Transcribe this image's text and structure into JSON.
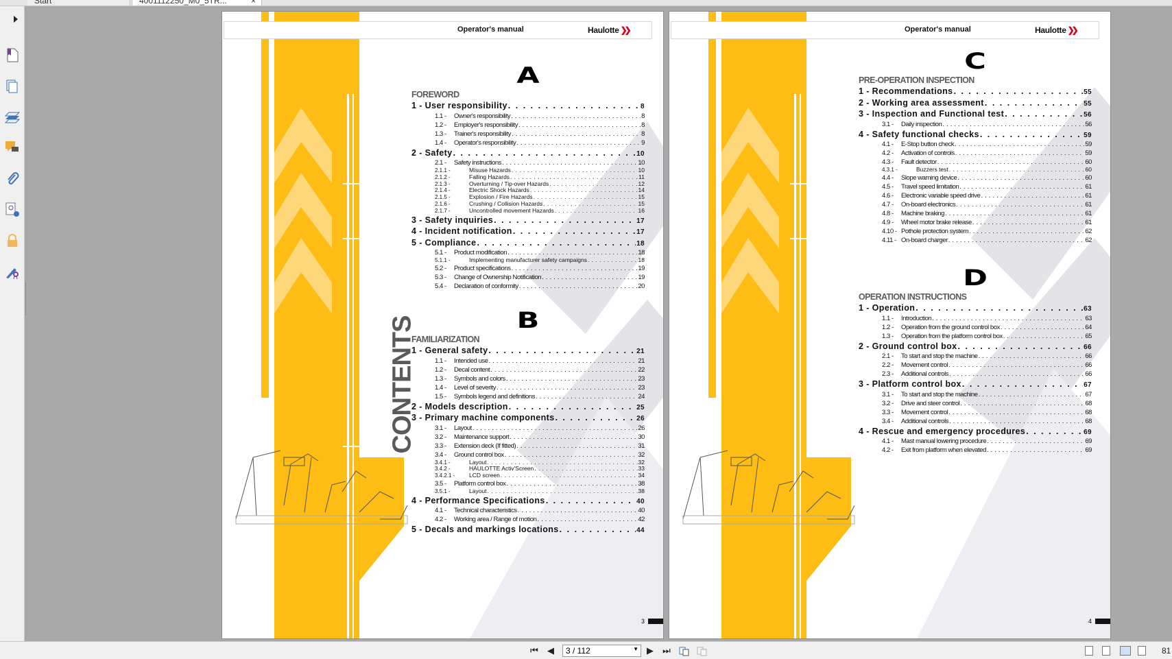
{
  "tabs": [
    {
      "label": "Start"
    },
    {
      "label": "4001112250_M0_5TR..."
    }
  ],
  "toolbar": {
    "page_field": "3 / 112",
    "zoom": "81",
    "close": "×"
  },
  "sidebar_icons": [
    "bookmark-icon",
    "pages-icon",
    "layers-icon",
    "comments-icon",
    "attachments-icon",
    "signature-icon",
    "lock-icon",
    "certify-icon"
  ],
  "colors": {
    "yellow": "#fdbd14",
    "light_yellow": "#fed77a",
    "gray_deco": "#e3e3e8",
    "section_gray": "#5b5b5b"
  },
  "pages": [
    {
      "header_title": "Operator's manual",
      "logo": "Haulotte",
      "side_title": "CONTENTS",
      "page_number": "3",
      "groups": [
        {
          "letter": "A",
          "heading": "FOREWORD",
          "entries": [
            {
              "level": 1,
              "title": "1 - User responsibility",
              "page": "8"
            },
            {
              "level": 2,
              "num": "1.1 -",
              "title": "Owner's responsibility",
              "page": "8"
            },
            {
              "level": 2,
              "num": "1.2 -",
              "title": "Employer's responsibility",
              "page": "8"
            },
            {
              "level": 2,
              "num": "1.3 -",
              "title": "Trainer's responsibility",
              "page": "8"
            },
            {
              "level": 2,
              "num": "1.4 -",
              "title": "Operator's responsibility",
              "page": "9"
            },
            {
              "level": 1,
              "title": "2 - Safety",
              "page": "10"
            },
            {
              "level": 2,
              "num": "2.1 -",
              "title": "Safety instructions",
              "page": "10"
            },
            {
              "level": 3,
              "num": "2.1.1 -",
              "title": "Misuse Hazards",
              "page": "10"
            },
            {
              "level": 3,
              "num": "2.1.2 -",
              "title": "Falling Hazards",
              "page": "11"
            },
            {
              "level": 3,
              "num": "2.1.3 -",
              "title": "Overturning / Tip-over Hazards",
              "page": "12"
            },
            {
              "level": 3,
              "num": "2.1.4 -",
              "title": "Electric Shock Hazards",
              "page": "14"
            },
            {
              "level": 3,
              "num": "2.1.5 -",
              "title": "Explosion / Fire Hazards",
              "page": "15"
            },
            {
              "level": 3,
              "num": "2.1.6 -",
              "title": "Crushing / Collision Hazards",
              "page": "15"
            },
            {
              "level": 3,
              "num": "2.1.7 -",
              "title": "Uncontrolled movement Hazards",
              "page": "16"
            },
            {
              "level": 1,
              "title": "3 - Safety inquiries",
              "page": "17"
            },
            {
              "level": 1,
              "title": "4 - Incident notification",
              "page": "17"
            },
            {
              "level": 1,
              "title": "5 - Compliance",
              "page": "18"
            },
            {
              "level": 2,
              "num": "5.1 -",
              "title": "Product modification",
              "page": "18"
            },
            {
              "level": 3,
              "num": "5.1.1 -",
              "title": "Implementing manufacturer safety campaigns",
              "page": "18"
            },
            {
              "level": 2,
              "num": "5.2 -",
              "title": "Product specifications",
              "page": "19"
            },
            {
              "level": 2,
              "num": "5.3 -",
              "title": "Change of Ownership Notification",
              "page": "19"
            },
            {
              "level": 2,
              "num": "5.4 -",
              "title": "Declaration of conformity",
              "page": "20"
            }
          ]
        },
        {
          "letter": "B",
          "heading": "FAMILIARIZATION",
          "entries": [
            {
              "level": 1,
              "title": "1 - General safety",
              "page": "21"
            },
            {
              "level": 2,
              "num": "1.1 -",
              "title": "Intended use",
              "page": "21"
            },
            {
              "level": 2,
              "num": "1.2 -",
              "title": "Decal content",
              "page": "22"
            },
            {
              "level": 2,
              "num": "1.3 -",
              "title": "Symbols and colors",
              "page": "23"
            },
            {
              "level": 2,
              "num": "1.4 -",
              "title": "Level of severity",
              "page": "23"
            },
            {
              "level": 2,
              "num": "1.5 -",
              "title": "Symbols legend and definitions",
              "page": "24"
            },
            {
              "level": 1,
              "title": "2 - Models description",
              "page": "25"
            },
            {
              "level": 1,
              "title": "3 - Primary machine components",
              "page": "26"
            },
            {
              "level": 2,
              "num": "3.1 -",
              "title": "Layout",
              "page": "26"
            },
            {
              "level": 2,
              "num": "3.2 -",
              "title": "Maintenance support",
              "page": "30"
            },
            {
              "level": 2,
              "num": "3.3 -",
              "title": "Extension deck (If fitted)",
              "page": "31"
            },
            {
              "level": 2,
              "num": "3.4 -",
              "title": "Ground control box",
              "page": "32"
            },
            {
              "level": 3,
              "num": "3.4.1 -",
              "title": "Layout",
              "page": "32"
            },
            {
              "level": 3,
              "num": "3.4.2 -",
              "title": "HAULOTTE Activ'Screen",
              "page": "33"
            },
            {
              "level": 3,
              "num": "3.4.2.1 -",
              "title": "LCD screen",
              "page": "34"
            },
            {
              "level": 2,
              "num": "3.5 -",
              "title": "Platform control box",
              "page": "38"
            },
            {
              "level": 3,
              "num": "3.5.1 -",
              "title": "Layout",
              "page": "38"
            },
            {
              "level": 1,
              "title": "4 - Performance Specifications",
              "page": "40"
            },
            {
              "level": 2,
              "num": "4.1 -",
              "title": "Technical characteristics",
              "page": "40"
            },
            {
              "level": 2,
              "num": "4.2 -",
              "title": "Working area / Range of motion",
              "page": "42"
            },
            {
              "level": 1,
              "title": "5 - Decals and markings locations",
              "page": "44"
            }
          ]
        }
      ]
    },
    {
      "header_title": "Operator's manual",
      "logo": "Haulotte",
      "page_number": "4",
      "groups": [
        {
          "letter": "C",
          "heading": "PRE-OPERATION INSPECTION",
          "entries": [
            {
              "level": 1,
              "title": "1 - Recommendations",
              "page": "55"
            },
            {
              "level": 1,
              "title": "2 - Working area assessment",
              "page": "55"
            },
            {
              "level": 1,
              "title": "3 - Inspection and Functional test",
              "page": "56"
            },
            {
              "level": 2,
              "num": "3.1 -",
              "title": "Daily inspection",
              "page": "56"
            },
            {
              "level": 1,
              "title": "4 - Safety functional checks",
              "page": "59"
            },
            {
              "level": 2,
              "num": "4.1 -",
              "title": "E-Stop button check",
              "page": "59"
            },
            {
              "level": 2,
              "num": "4.2 -",
              "title": "Activation of controls",
              "page": "59"
            },
            {
              "level": 2,
              "num": "4.3 -",
              "title": "Fault detector",
              "page": "60"
            },
            {
              "level": 3,
              "num": "4.3.1 -",
              "title": "Buzzers test",
              "page": "60"
            },
            {
              "level": 2,
              "num": "4.4 -",
              "title": "Slope warning device",
              "page": "60"
            },
            {
              "level": 2,
              "num": "4.5 -",
              "title": "Travel speed limitation",
              "page": "61"
            },
            {
              "level": 2,
              "num": "4.6 -",
              "title": "Electronic variable speed drive",
              "page": "61"
            },
            {
              "level": 2,
              "num": "4.7 -",
              "title": "On-board electronics",
              "page": "61"
            },
            {
              "level": 2,
              "num": "4.8 -",
              "title": "Machine braking",
              "page": "61"
            },
            {
              "level": 2,
              "num": "4.9 -",
              "title": "Wheel motor brake release",
              "page": "61"
            },
            {
              "level": 2,
              "num": "4.10 -",
              "title": "Pothole protection system",
              "page": "62"
            },
            {
              "level": 2,
              "num": "4.11 -",
              "title": "On-board charger",
              "page": "62"
            }
          ]
        },
        {
          "letter": "D",
          "heading": "OPERATION INSTRUCTIONS",
          "entries": [
            {
              "level": 1,
              "title": "1 - Operation",
              "page": "63"
            },
            {
              "level": 2,
              "num": "1.1 -",
              "title": "Introduction",
              "page": "63"
            },
            {
              "level": 2,
              "num": "1.2 -",
              "title": "Operation from the ground control box",
              "page": "64"
            },
            {
              "level": 2,
              "num": "1.3 -",
              "title": "Operation from the platform control box",
              "page": "65"
            },
            {
              "level": 1,
              "title": "2 - Ground control box",
              "page": "66"
            },
            {
              "level": 2,
              "num": "2.1 -",
              "title": "To start and stop the machine",
              "page": "66"
            },
            {
              "level": 2,
              "num": "2.2 -",
              "title": "Movement control",
              "page": "66"
            },
            {
              "level": 2,
              "num": "2.3 -",
              "title": "Additional controls",
              "page": "66"
            },
            {
              "level": 1,
              "title": "3 - Platform control box",
              "page": "67"
            },
            {
              "level": 2,
              "num": "3.1 -",
              "title": "To start and stop the machine",
              "page": "67"
            },
            {
              "level": 2,
              "num": "3.2 -",
              "title": "Drive and steer control",
              "page": "68"
            },
            {
              "level": 2,
              "num": "3.3 -",
              "title": "Movement control",
              "page": "68"
            },
            {
              "level": 2,
              "num": "3.4 -",
              "title": "Additional controls",
              "page": "68"
            },
            {
              "level": 1,
              "title": "4 - Rescue and emergency procedures",
              "page": "69"
            },
            {
              "level": 2,
              "num": "4.1 -",
              "title": "Mast manual lowering procedure",
              "page": "69"
            },
            {
              "level": 2,
              "num": "4.2 -",
              "title": "Exit from platform when elevated",
              "page": "69"
            }
          ]
        }
      ]
    }
  ]
}
